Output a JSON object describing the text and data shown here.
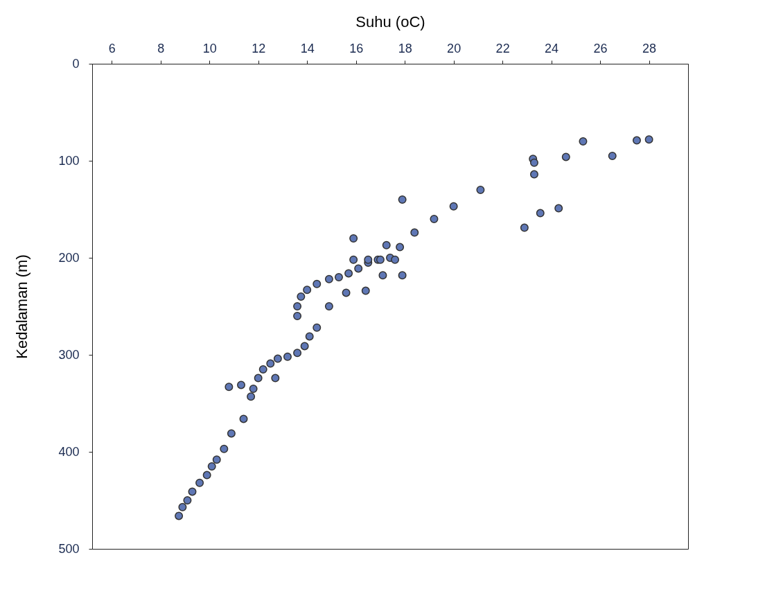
{
  "chart_data": {
    "type": "scatter",
    "xlabel": "Suhu (oC)",
    "ylabel": "Kedalaman (m)",
    "marker": "circle",
    "grid": false,
    "xlim": [
      5.2,
      29.6
    ],
    "xticks": [
      6,
      8,
      10,
      12,
      14,
      16,
      18,
      20,
      22,
      24,
      26,
      28
    ],
    "ylim": [
      500,
      0
    ],
    "yticks": [
      0,
      100,
      200,
      300,
      400,
      500
    ],
    "series": [
      {
        "color": "#5f77b5",
        "x": [
          8.75,
          8.9,
          9.1,
          9.3,
          9.6,
          9.9,
          10.1,
          10.3,
          10.6,
          10.9,
          11.4,
          10.8,
          11.3,
          11.7,
          11.8,
          12.0,
          12.2,
          12.5,
          12.8,
          12.7,
          13.2,
          13.6,
          13.9,
          14.1,
          14.4,
          14.9,
          13.6,
          13.6,
          13.75,
          14.0,
          14.4,
          14.9,
          15.3,
          15.7,
          16.1,
          16.5,
          16.9,
          17.4,
          15.6,
          16.4,
          17.1,
          17.9,
          15.9,
          16.5,
          17.0,
          17.6,
          15.9,
          17.25,
          17.8,
          18.4,
          19.2,
          22.9,
          23.55,
          24.3,
          20.0,
          17.9,
          21.1,
          23.3,
          23.25,
          23.3,
          24.6,
          26.5,
          25.3,
          27.5,
          28.0
        ],
        "values": [
          466,
          457,
          450,
          441,
          432,
          424,
          415,
          408,
          397,
          381,
          366,
          333,
          331,
          343,
          335,
          324,
          315,
          309,
          304,
          324,
          302,
          298,
          291,
          281,
          272,
          250,
          260,
          250,
          240,
          233,
          227,
          222,
          220,
          216,
          211,
          205,
          202,
          200,
          236,
          234,
          218,
          218,
          202,
          202,
          202,
          202,
          180,
          187,
          189,
          174,
          160,
          169,
          154,
          149,
          147,
          140,
          130,
          114,
          98,
          102,
          96,
          95,
          80,
          79,
          78
        ]
      }
    ]
  }
}
